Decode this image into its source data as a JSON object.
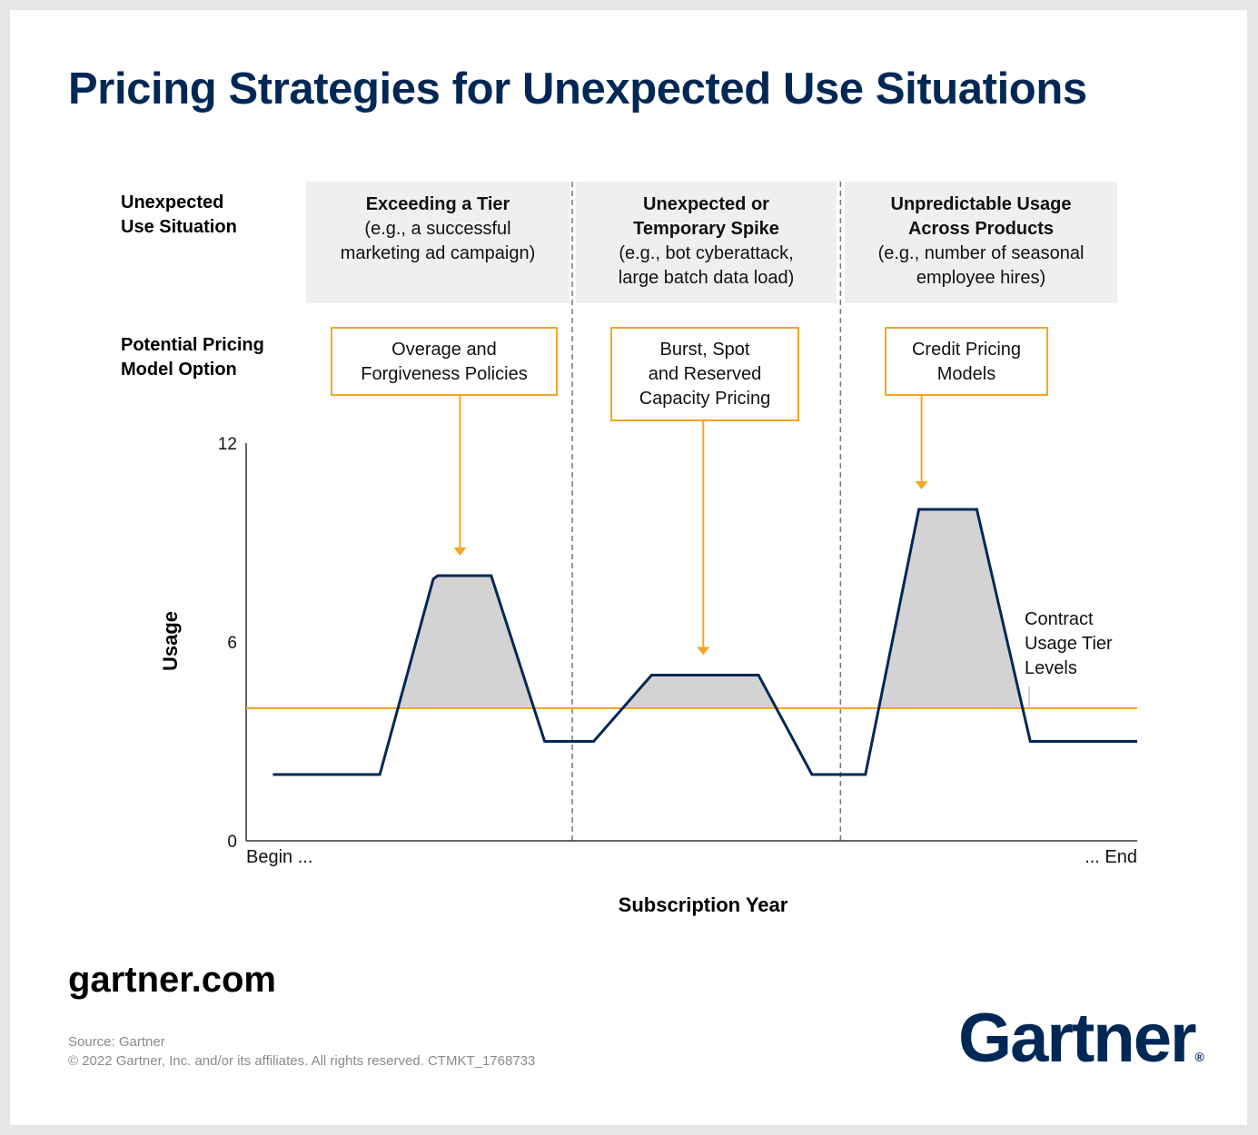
{
  "title": "Pricing Strategies for Unexpected Use Situations",
  "row_labels": {
    "situation": "Unexpected\nUse Situation",
    "pricing": "Potential Pricing\nModel Option"
  },
  "situations": [
    {
      "title": "Exceeding a Tier",
      "desc": "(e.g., a successful\nmarketing ad campaign)"
    },
    {
      "title": "Unexpected or\nTemporary Spike",
      "desc": "(e.g., bot cyberattack,\nlarge batch data load)"
    },
    {
      "title": "Unpredictable Usage\nAcross Products",
      "desc": "(e.g., number of seasonal\nemployee hires)"
    }
  ],
  "pricing_models": [
    "Overage and\nForgiveness Policies",
    "Burst, Spot\nand Reserved\nCapacity Pricing",
    "Credit Pricing\nModels"
  ],
  "tier_label": "Contract\nUsage Tier\nLevels",
  "colors": {
    "navy": "#002856",
    "orange": "#f5a623",
    "fill_gray": "#d3d3d3",
    "box_gray": "#efefef"
  },
  "chart_data": {
    "type": "area",
    "xlabel": "Subscription Year",
    "ylabel": "Usage",
    "x_tick_labels": [
      "Begin ...",
      "... End"
    ],
    "y_ticks": [
      0,
      6,
      12
    ],
    "ylim": [
      0,
      12
    ],
    "xlim": [
      0,
      100
    ],
    "tier_level": 4.0,
    "section_dividers_x": [
      36.6,
      66.7
    ],
    "series": [
      {
        "x": [
          3,
          15,
          21,
          21.5,
          27.5,
          33.5,
          39,
          45.5,
          57.5,
          63.5,
          69.5,
          75.5,
          82,
          88,
          100
        ],
        "y": [
          2.0,
          2.0,
          7.9,
          8.0,
          8.0,
          3.0,
          3.0,
          5.0,
          5.0,
          2.0,
          2.0,
          10.0,
          10.0,
          3.0,
          3.0
        ]
      }
    ],
    "arrow_targets_x": [
      24.0,
      51.3,
      75.8
    ]
  },
  "footer": {
    "site": "gartner.com",
    "source": "Source: Gartner",
    "copyright": "© 2022 Gartner, Inc. and/or its affiliates. All rights reserved. CTMKT_1768733",
    "logo_text": "Gartner",
    "logo_mark": "®"
  }
}
